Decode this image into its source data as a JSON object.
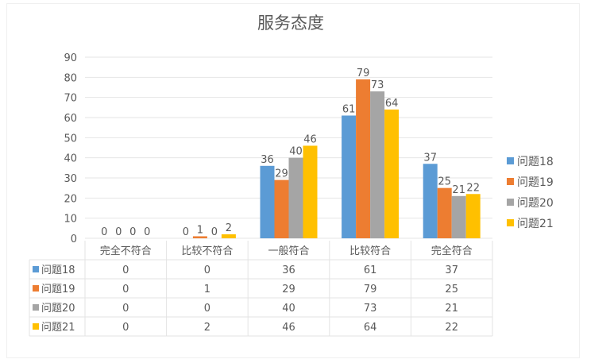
{
  "chart_data": {
    "type": "bar",
    "title": "服务态度",
    "categories": [
      "完全不符合",
      "比较不符合",
      "一般符合",
      "比较符合",
      "完全符合"
    ],
    "series": [
      {
        "name": "问题18",
        "color": "#5b9bd5",
        "values": [
          0,
          0,
          36,
          61,
          37
        ]
      },
      {
        "name": "问题19",
        "color": "#ed7d31",
        "values": [
          0,
          1,
          29,
          79,
          25
        ]
      },
      {
        "name": "问题20",
        "color": "#a5a5a5",
        "values": [
          0,
          0,
          40,
          73,
          21
        ]
      },
      {
        "name": "问题21",
        "color": "#ffc000",
        "values": [
          0,
          2,
          46,
          64,
          22
        ]
      }
    ],
    "yticks": [
      "0",
      "10",
      "20",
      "30",
      "40",
      "50",
      "60",
      "70",
      "80",
      "90"
    ],
    "ylim": [
      0,
      90
    ],
    "grid": true,
    "legend": "right",
    "data_table": true
  }
}
